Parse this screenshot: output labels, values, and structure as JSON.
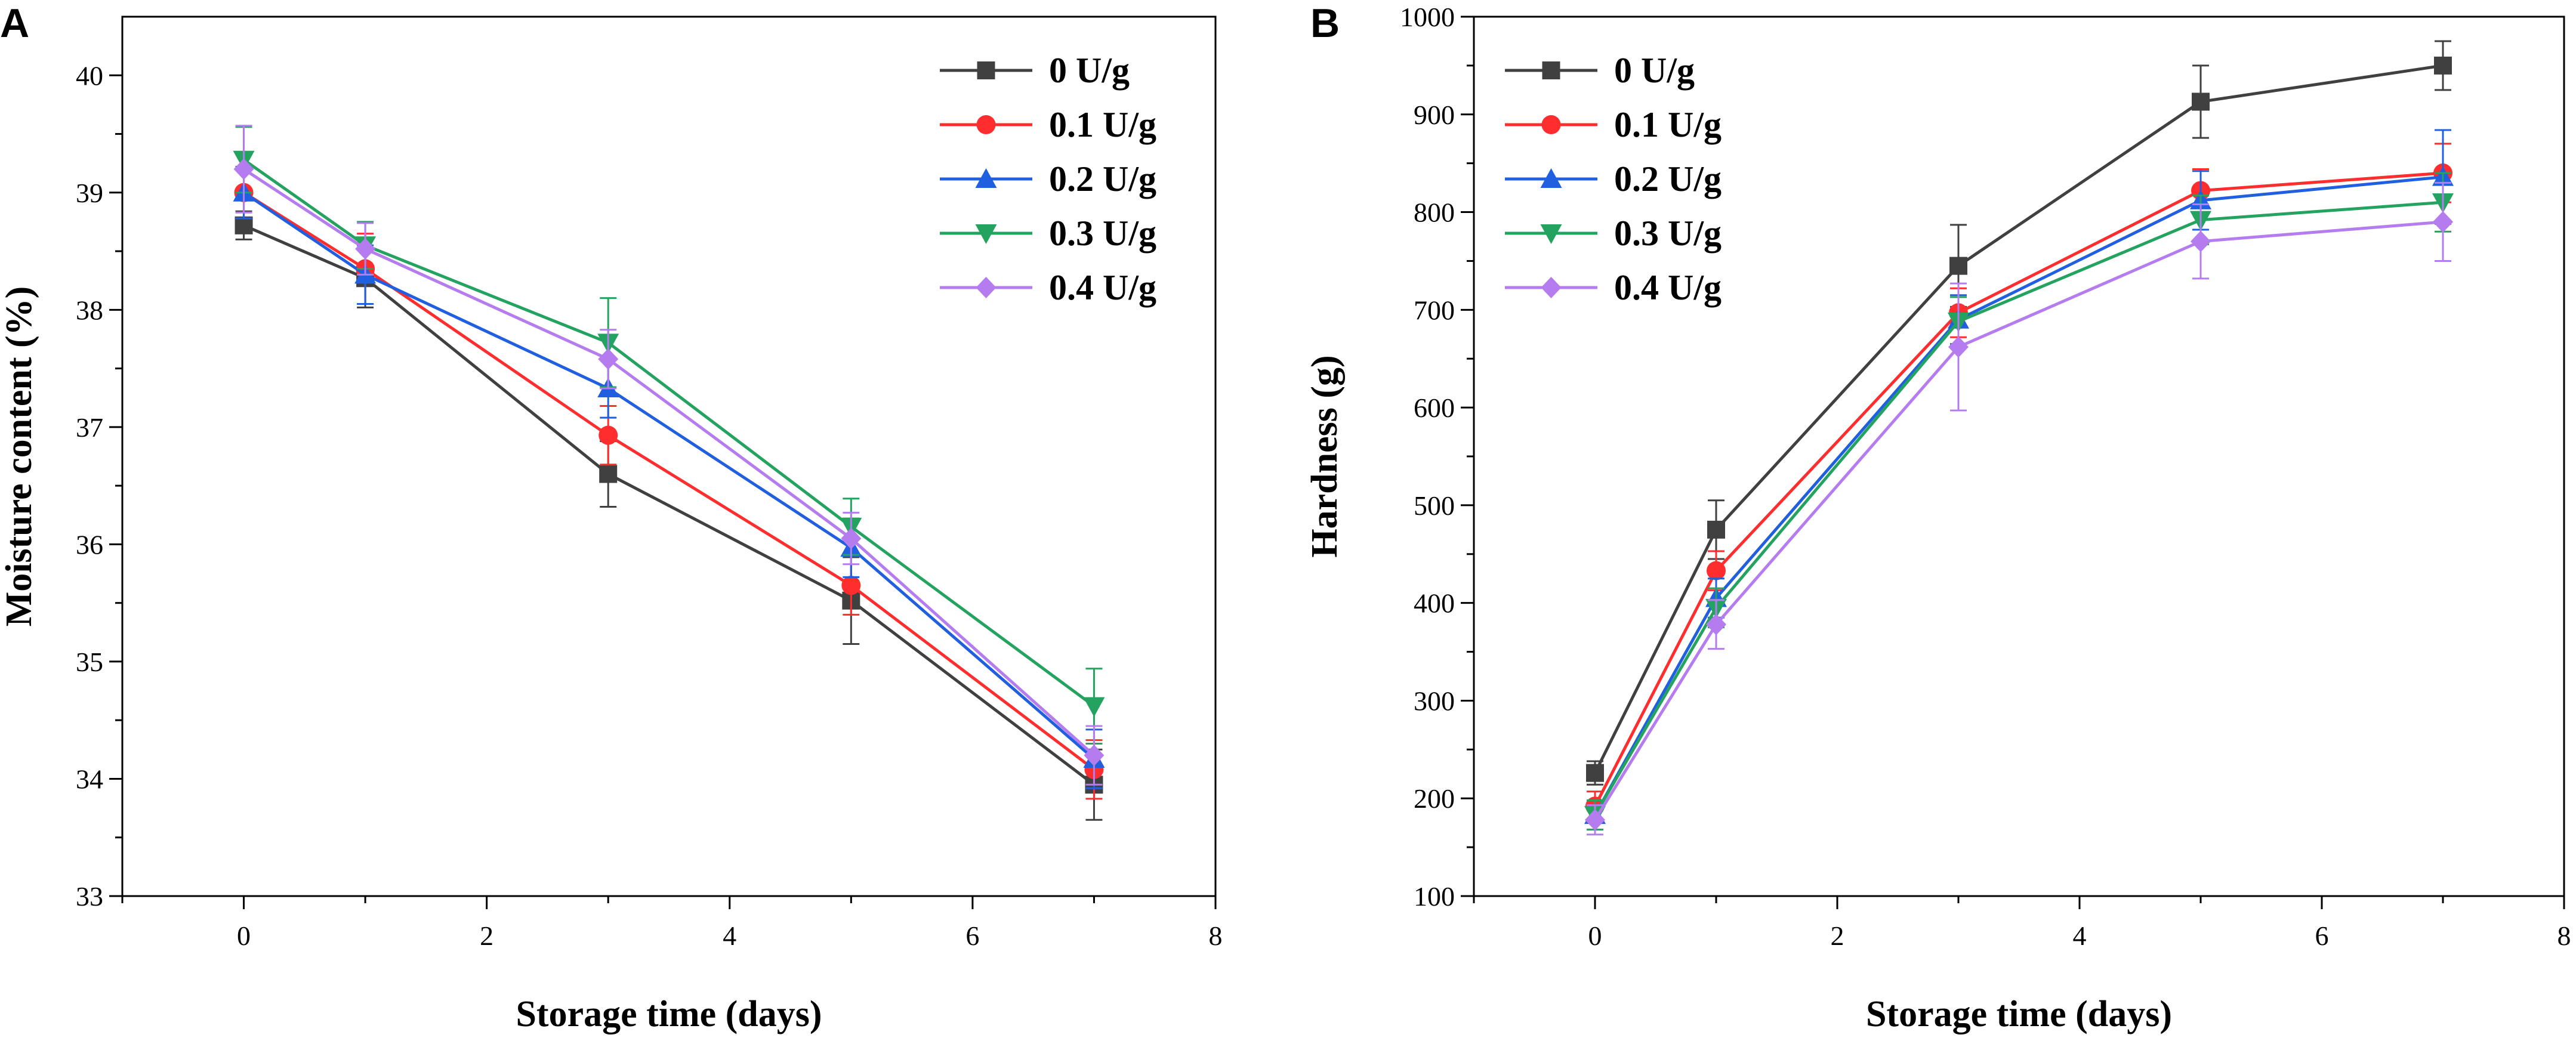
{
  "figure": {
    "panel_labels": [
      "A",
      "B"
    ]
  },
  "chart_data": [
    {
      "type": "line",
      "panel": "A",
      "title": "",
      "xlabel": "Storage time (days)",
      "ylabel": "Moisture content (%)",
      "xlim": [
        -1,
        8
      ],
      "ylim": [
        33,
        40.5
      ],
      "xticks": [
        0,
        2,
        4,
        6,
        8
      ],
      "yticks": [
        33,
        34,
        35,
        36,
        37,
        38,
        39,
        40
      ],
      "x": [
        0,
        1,
        3,
        5,
        7
      ],
      "legend_position": "top-right",
      "grid": false,
      "series": [
        {
          "name": "0 U/g",
          "color": "#404040",
          "marker": "square",
          "values": [
            38.72,
            38.27,
            36.6,
            35.52,
            33.95
          ],
          "errors": [
            0.12,
            0.25,
            0.28,
            0.37,
            0.3
          ]
        },
        {
          "name": "0.1 U/g",
          "color": "#ff2d2d",
          "marker": "circle",
          "values": [
            39.0,
            38.35,
            36.93,
            35.65,
            34.08
          ],
          "errors": [
            0.22,
            0.3,
            0.25,
            0.25,
            0.25
          ]
        },
        {
          "name": "0.2 U/g",
          "color": "#1f5fe0",
          "marker": "triangle-up",
          "values": [
            39.0,
            38.3,
            37.33,
            35.97,
            34.17
          ],
          "errors": [
            0.22,
            0.25,
            0.25,
            0.25,
            0.25
          ]
        },
        {
          "name": "0.3 U/g",
          "color": "#23a35f",
          "marker": "triangle-down",
          "values": [
            39.28,
            38.55,
            37.72,
            36.15,
            34.62
          ],
          "errors": [
            0.28,
            0.2,
            0.38,
            0.24,
            0.32
          ]
        },
        {
          "name": "0.4 U/g",
          "color": "#b57cf0",
          "marker": "diamond",
          "values": [
            39.2,
            38.52,
            37.58,
            36.05,
            34.2
          ],
          "errors": [
            0.37,
            0.22,
            0.25,
            0.22,
            0.25
          ]
        }
      ]
    },
    {
      "type": "line",
      "panel": "B",
      "title": "",
      "xlabel": "Storage time (days)",
      "ylabel": "Hardness (g)",
      "xlim": [
        -1,
        8
      ],
      "ylim": [
        100,
        1000
      ],
      "xticks": [
        0,
        2,
        4,
        6,
        8
      ],
      "yticks": [
        100,
        200,
        300,
        400,
        500,
        600,
        700,
        800,
        900,
        1000
      ],
      "x": [
        0,
        1,
        3,
        5,
        7
      ],
      "legend_position": "top-left",
      "grid": false,
      "series": [
        {
          "name": "0 U/g",
          "color": "#404040",
          "marker": "square",
          "values": [
            226,
            475,
            745,
            913,
            950
          ],
          "errors": [
            12,
            30,
            42,
            37,
            25
          ]
        },
        {
          "name": "0.1 U/g",
          "color": "#ff2d2d",
          "marker": "circle",
          "values": [
            192,
            433,
            697,
            822,
            840
          ],
          "errors": [
            15,
            20,
            25,
            22,
            30
          ]
        },
        {
          "name": "0.2 U/g",
          "color": "#1f5fe0",
          "marker": "triangle-up",
          "values": [
            183,
            405,
            690,
            812,
            836
          ],
          "errors": [
            15,
            20,
            25,
            30,
            48
          ]
        },
        {
          "name": "0.3 U/g",
          "color": "#23a35f",
          "marker": "triangle-down",
          "values": [
            183,
            395,
            688,
            792,
            810
          ],
          "errors": [
            15,
            20,
            25,
            25,
            30
          ]
        },
        {
          "name": "0.4 U/g",
          "color": "#b57cf0",
          "marker": "diamond",
          "values": [
            178,
            378,
            662,
            770,
            790
          ],
          "errors": [
            15,
            25,
            65,
            38,
            40
          ]
        }
      ]
    }
  ]
}
